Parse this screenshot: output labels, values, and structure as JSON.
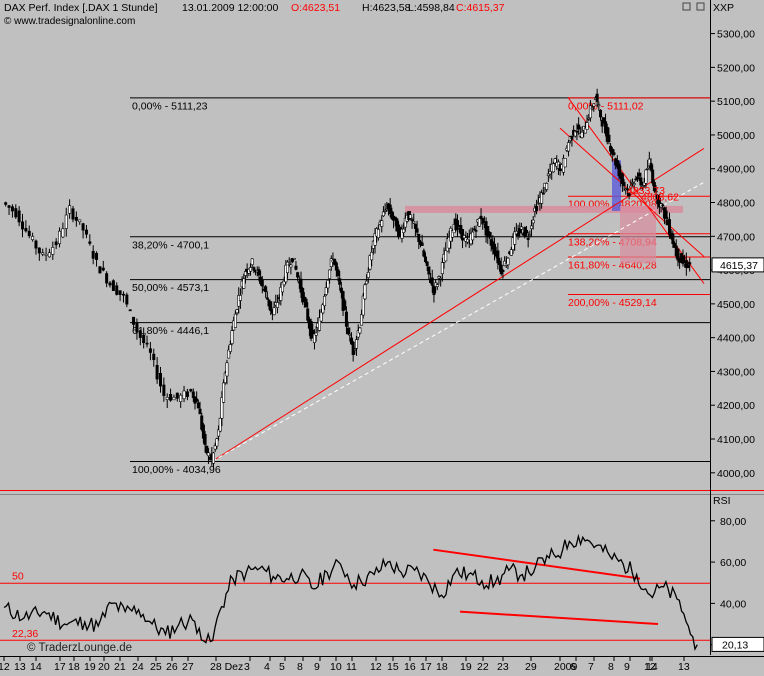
{
  "header": {
    "instrument": "DAX Perf. Index [.DAX  1 Stunde]",
    "datetime": "13.01.2009 12:00:00",
    "open": "O:4623,51",
    "high": "H:4623,58",
    "low": "L:4598,84",
    "close": "C:4615,37",
    "source": "© www.tradesignalonline.com"
  },
  "watermark": "© TraderzLounge.de",
  "colors": {
    "background": "#c0c0c0",
    "red": "#ff0000",
    "blue": "#5a5ad8",
    "pink": "#d88c9c",
    "price": "#000000"
  },
  "chart_data": [
    {
      "type": "candlestick",
      "title": "DAX Perf. Index [.DAX  1 Stunde]",
      "axis_label": "XXP",
      "yticks": [
        4000,
        4100,
        4200,
        4300,
        4400,
        4500,
        4600,
        4700,
        4800,
        4900,
        5000,
        5100,
        5200,
        5300
      ],
      "ytick_labels": [
        "4000,00",
        "4100,00",
        "4200,00",
        "4300,00",
        "4400,00",
        "4500,00",
        "4600,00",
        "4700,00",
        "4800,00",
        "4900,00",
        "5000,00",
        "5100,00",
        "5200,00",
        "5300,00"
      ],
      "ylim": [
        3955,
        5355
      ],
      "last_value": "4615,37",
      "x_dates": [
        "12",
        "13",
        "14",
        "17",
        "18",
        "19",
        "20",
        "21",
        "24",
        "25",
        "26",
        "27",
        "28 Dez",
        "3",
        "4",
        "5",
        "8",
        "9",
        "10",
        "11",
        "12",
        "15",
        "16",
        "17",
        "18",
        "19",
        "22",
        "23",
        "29",
        "2009",
        "6",
        "7",
        "8",
        "9",
        "12",
        "13",
        "14"
      ],
      "price_path": [
        [
          0,
          4800
        ],
        [
          2,
          4770
        ],
        [
          4,
          4700
        ],
        [
          6,
          4640
        ],
        [
          8,
          4680
        ],
        [
          10,
          4780
        ],
        [
          12,
          4720
        ],
        [
          14,
          4620
        ],
        [
          16,
          4560
        ],
        [
          18,
          4520
        ],
        [
          20,
          4420
        ],
        [
          22,
          4350
        ],
        [
          24,
          4230
        ],
        [
          26,
          4220
        ],
        [
          28,
          4240
        ],
        [
          29,
          4200
        ],
        [
          30,
          4070
        ],
        [
          31,
          4035
        ],
        [
          32,
          4120
        ],
        [
          33,
          4300
        ],
        [
          34,
          4420
        ],
        [
          35,
          4520
        ],
        [
          36,
          4600
        ],
        [
          37,
          4620
        ],
        [
          38,
          4580
        ],
        [
          39,
          4530
        ],
        [
          40,
          4470
        ],
        [
          41,
          4520
        ],
        [
          42,
          4600
        ],
        [
          43,
          4640
        ],
        [
          44,
          4560
        ],
        [
          45,
          4480
        ],
        [
          46,
          4390
        ],
        [
          47,
          4450
        ],
        [
          48,
          4560
        ],
        [
          49,
          4640
        ],
        [
          50,
          4550
        ],
        [
          51,
          4440
        ],
        [
          52,
          4360
        ],
        [
          53,
          4440
        ],
        [
          54,
          4580
        ],
        [
          55,
          4680
        ],
        [
          56,
          4740
        ],
        [
          57,
          4790
        ],
        [
          58,
          4750
        ],
        [
          59,
          4700
        ],
        [
          60,
          4770
        ],
        [
          61,
          4730
        ],
        [
          62,
          4680
        ],
        [
          63,
          4600
        ],
        [
          64,
          4540
        ],
        [
          65,
          4590
        ],
        [
          66,
          4680
        ],
        [
          67,
          4740
        ],
        [
          68,
          4710
        ],
        [
          69,
          4680
        ],
        [
          70,
          4720
        ],
        [
          71,
          4760
        ],
        [
          72,
          4700
        ],
        [
          73,
          4660
        ],
        [
          74,
          4600
        ],
        [
          75,
          4640
        ],
        [
          76,
          4700
        ],
        [
          77,
          4720
        ],
        [
          78,
          4700
        ],
        [
          79,
          4780
        ],
        [
          80,
          4820
        ],
        [
          81,
          4880
        ],
        [
          82,
          4920
        ],
        [
          83,
          4900
        ],
        [
          84,
          4980
        ],
        [
          85,
          5020
        ],
        [
          86,
          5000
        ],
        [
          87,
          5060
        ],
        [
          88,
          5111
        ],
        [
          89,
          5040
        ],
        [
          90,
          4980
        ],
        [
          91,
          4920
        ],
        [
          92,
          4860
        ],
        [
          93,
          4830
        ],
        [
          94,
          4880
        ],
        [
          95,
          4850
        ],
        [
          96,
          4920
        ],
        [
          97,
          4820
        ],
        [
          98,
          4780
        ],
        [
          99,
          4720
        ],
        [
          100,
          4650
        ],
        [
          101,
          4620
        ],
        [
          102,
          4615
        ]
      ],
      "fib_retracements": [
        {
          "label": "0,00% - 5111,23",
          "y": 5111.23
        },
        {
          "label": "38,20% - 4700,1",
          "y": 4700.1
        },
        {
          "label": "50,00% - 4573,1",
          "y": 4573.1
        },
        {
          "label": "61,80% - 4446,1",
          "y": 4446.1
        },
        {
          "label": "100,00% - 4034,96",
          "y": 4034.96
        }
      ],
      "fib_extensions": [
        {
          "label": "0,00% - 5111,02",
          "y": 5111.02
        },
        {
          "label": "100,00% - 4820,08",
          "y": 4820.08
        },
        {
          "label": "138,20% - 4708,94",
          "y": 4708.94
        },
        {
          "label": "161,80% - 4640,28",
          "y": 4640.28
        },
        {
          "label": "200,00% - 4529,14",
          "y": 4529.14
        }
      ],
      "annotations": [
        "4833,73",
        "4808,62"
      ]
    },
    {
      "type": "line",
      "title": "RSI",
      "yticks": [
        20,
        40,
        60,
        80
      ],
      "ytick_labels": [
        "20",
        "40,00",
        "60,00",
        "80,00"
      ],
      "ylim": [
        15,
        92
      ],
      "last_value": "20,13",
      "levels": [
        {
          "label": "50",
          "y": 50
        },
        {
          "label": "22,36",
          "y": 22.36
        }
      ],
      "values": [
        [
          0,
          38
        ],
        [
          3,
          33
        ],
        [
          6,
          36
        ],
        [
          9,
          30
        ],
        [
          12,
          31
        ],
        [
          14,
          29
        ],
        [
          16,
          40
        ],
        [
          18,
          36
        ],
        [
          20,
          37
        ],
        [
          22,
          30
        ],
        [
          24,
          25
        ],
        [
          26,
          30
        ],
        [
          28,
          32
        ],
        [
          29,
          28
        ],
        [
          30,
          21
        ],
        [
          31,
          22
        ],
        [
          32,
          36
        ],
        [
          34,
          52
        ],
        [
          36,
          55
        ],
        [
          38,
          57
        ],
        [
          40,
          53
        ],
        [
          42,
          52
        ],
        [
          44,
          54
        ],
        [
          46,
          47
        ],
        [
          48,
          55
        ],
        [
          50,
          59
        ],
        [
          52,
          49
        ],
        [
          53,
          51
        ],
        [
          55,
          54
        ],
        [
          57,
          60
        ],
        [
          59,
          55
        ],
        [
          61,
          56
        ],
        [
          63,
          51
        ],
        [
          65,
          44
        ],
        [
          67,
          55
        ],
        [
          69,
          54
        ],
        [
          71,
          51
        ],
        [
          73,
          50
        ],
        [
          75,
          56
        ],
        [
          77,
          54
        ],
        [
          78,
          55
        ],
        [
          79,
          58
        ],
        [
          81,
          62
        ],
        [
          83,
          66
        ],
        [
          84,
          70
        ],
        [
          86,
          72
        ],
        [
          88,
          68
        ],
        [
          90,
          63
        ],
        [
          92,
          59
        ],
        [
          94,
          54
        ],
        [
          96,
          44
        ],
        [
          98,
          48
        ],
        [
          100,
          42
        ],
        [
          101,
          35
        ],
        [
          102,
          25
        ],
        [
          103,
          20
        ]
      ]
    }
  ]
}
